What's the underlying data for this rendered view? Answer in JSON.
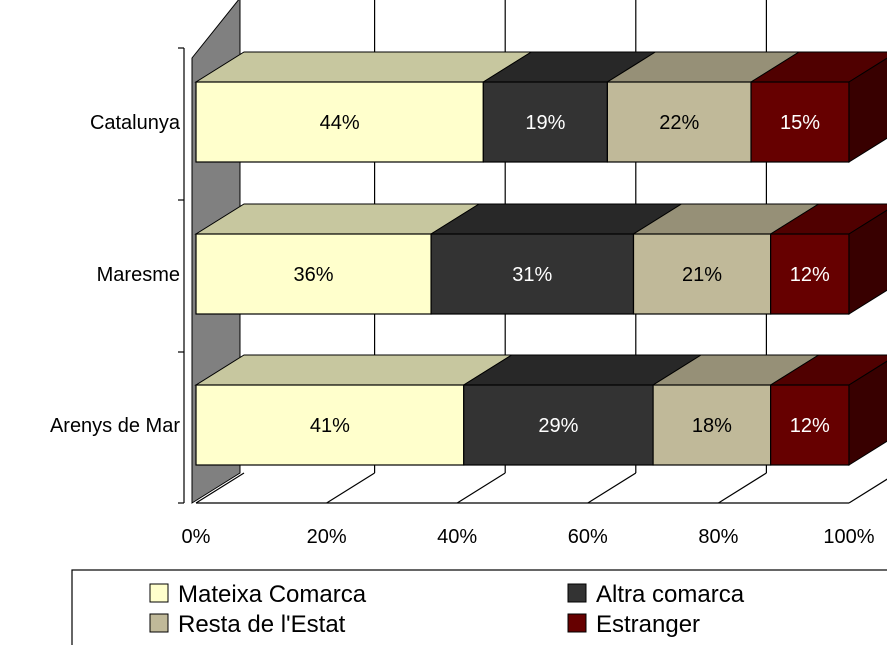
{
  "chart_data": {
    "type": "bar",
    "orientation": "horizontal",
    "stacked": "percent",
    "style": "3d",
    "categories": [
      "Catalunya",
      "Maresme",
      "Arenys de Mar"
    ],
    "series": [
      {
        "name": "Mateixa Comarca",
        "values": [
          44,
          36,
          41
        ],
        "labels": [
          "44%",
          "36%",
          "41%"
        ],
        "color": "#ffffcc"
      },
      {
        "name": "Altra comarca",
        "values": [
          19,
          31,
          29
        ],
        "labels": [
          "19%",
          "31%",
          "29%"
        ],
        "color": "#333333"
      },
      {
        "name": "Resta de l'Estat",
        "values": [
          22,
          21,
          18
        ],
        "labels": [
          "22%",
          "21%",
          "18%"
        ],
        "color": "#c0b999"
      },
      {
        "name": "Estranger",
        "values": [
          15,
          12,
          12
        ],
        "labels": [
          "15%",
          "12%",
          "12%"
        ],
        "color": "#660000"
      }
    ],
    "xlim": [
      0,
      100
    ],
    "x_ticks": [
      "0%",
      "20%",
      "40%",
      "60%",
      "80%",
      "100%"
    ],
    "grid": true,
    "legend_position": "bottom",
    "colors": {
      "gridline": "#000000",
      "wall_side": "#808080"
    }
  }
}
